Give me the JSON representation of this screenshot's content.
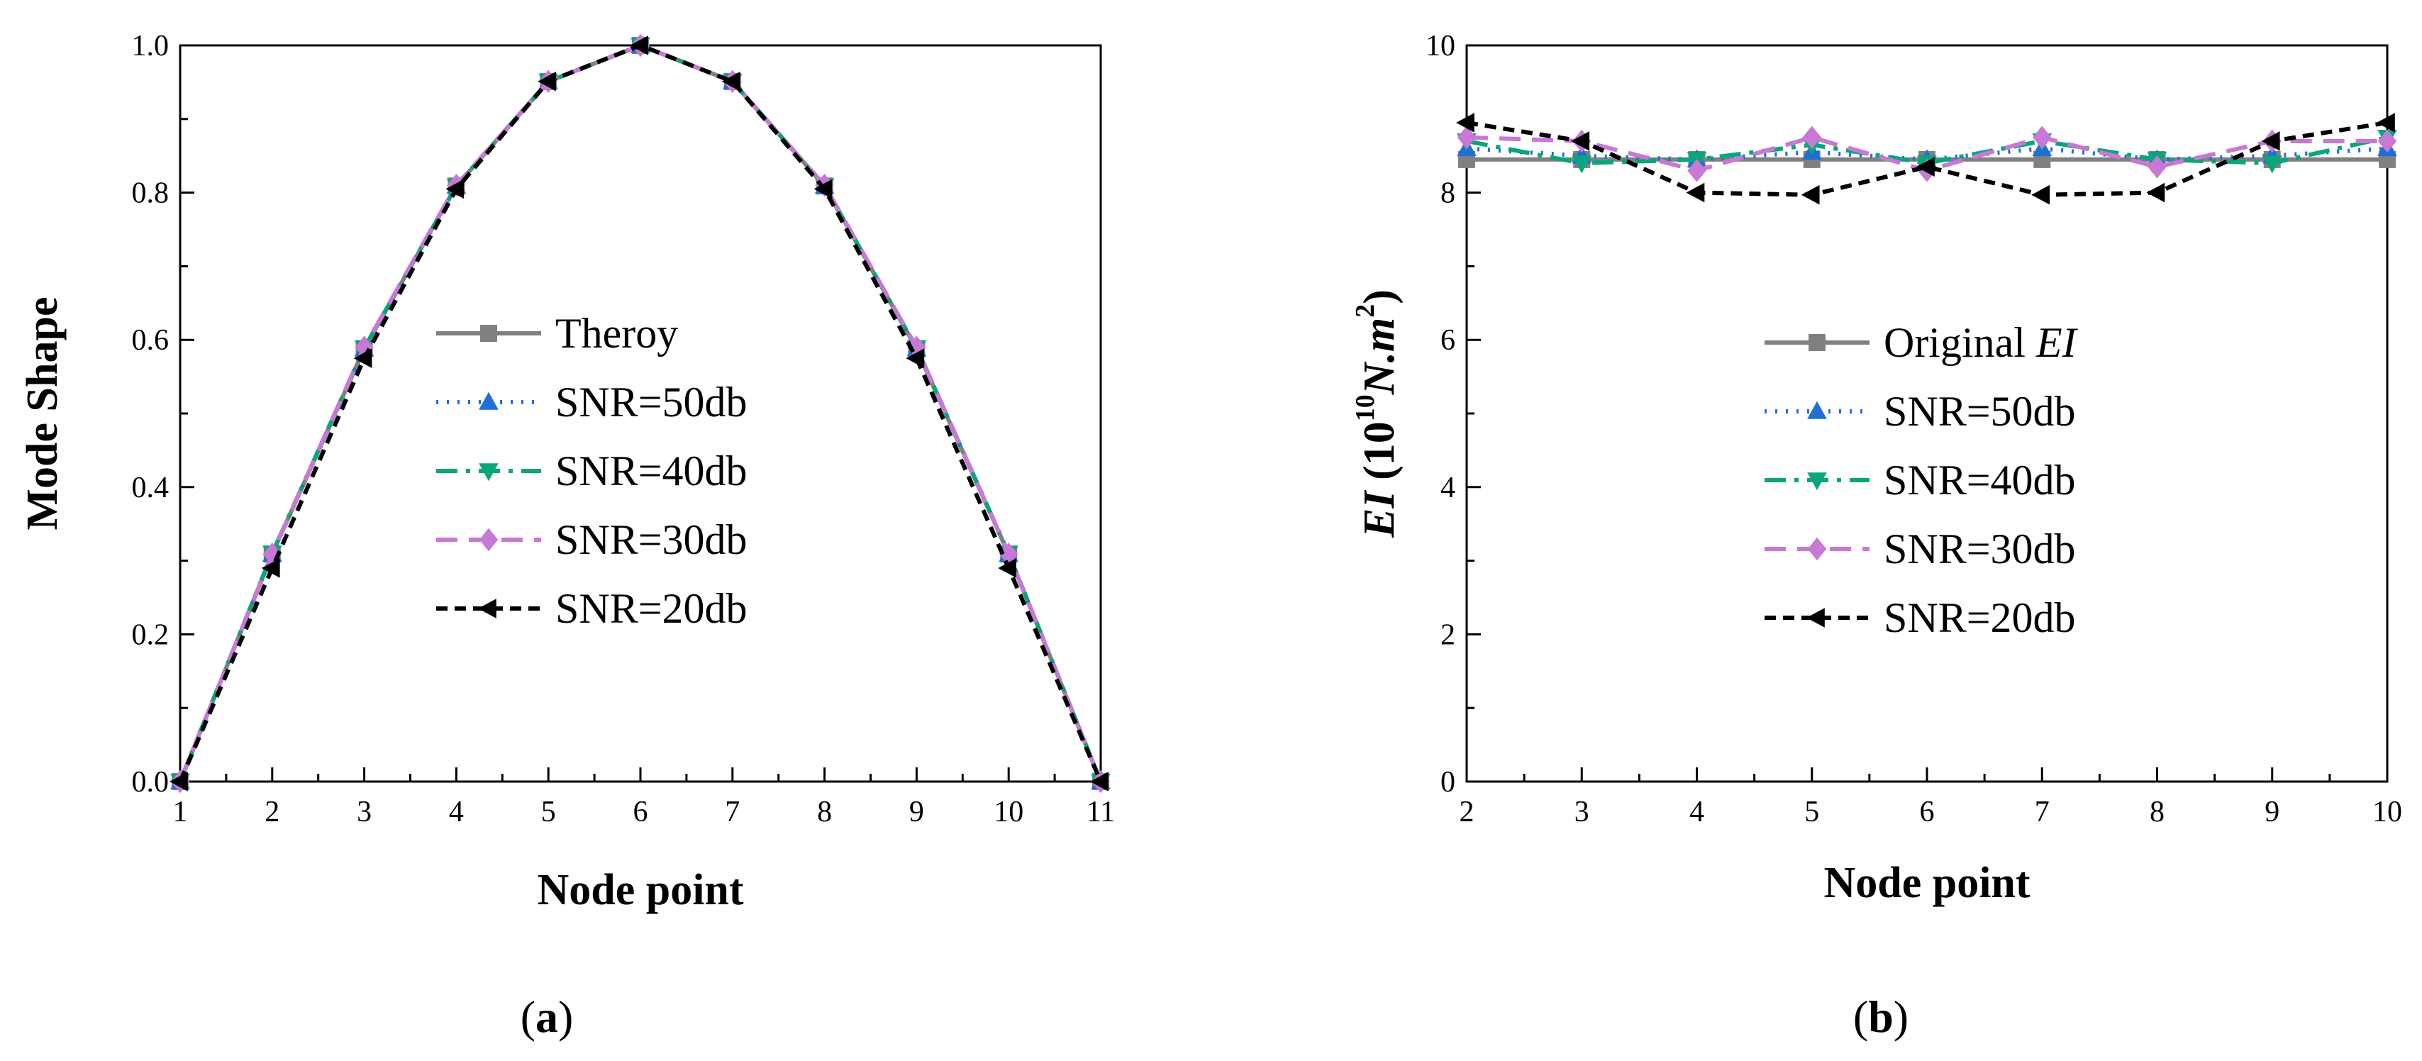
{
  "chart_data": [
    {
      "type": "line",
      "panel_label": "(a)",
      "panel_letter": "a",
      "title": "",
      "xlabel": "Node  point",
      "ylabel": "Mode Shape",
      "xlim": [
        1,
        11
      ],
      "ylim": [
        0,
        1.0
      ],
      "x_ticks": [
        1,
        2,
        3,
        4,
        5,
        6,
        7,
        8,
        9,
        10,
        11
      ],
      "y_ticks": [
        0.0,
        0.2,
        0.4,
        0.6,
        0.8,
        1.0
      ],
      "y_tick_labels": [
        "0.0",
        "0.2",
        "0.4",
        "0.6",
        "0.8",
        "1.0"
      ],
      "legend_position": "center",
      "x": [
        1,
        2,
        3,
        4,
        5,
        6,
        7,
        8,
        9,
        10,
        11
      ],
      "series": [
        {
          "name": "Theroy",
          "name_italic": "",
          "color": "#808080",
          "dash": "solid",
          "marker": "square",
          "values": [
            0,
            0.309,
            0.588,
            0.809,
            0.951,
            1.0,
            0.951,
            0.809,
            0.588,
            0.309,
            0
          ]
        },
        {
          "name": "SNR=50db",
          "name_italic": "",
          "color": "#1f6fd6",
          "dash": "dot",
          "marker": "triangle-up",
          "values": [
            0,
            0.309,
            0.588,
            0.809,
            0.951,
            1.0,
            0.951,
            0.809,
            0.588,
            0.309,
            0
          ]
        },
        {
          "name": "SNR=40db",
          "name_italic": "",
          "color": "#0aa57a",
          "dash": "dashdot",
          "marker": "triangle-down",
          "values": [
            0,
            0.31,
            0.589,
            0.809,
            0.951,
            1.0,
            0.951,
            0.809,
            0.589,
            0.31,
            0
          ]
        },
        {
          "name": "SNR=30db",
          "name_italic": "",
          "color": "#c878d6",
          "dash": "dash",
          "marker": "diamond",
          "values": [
            0,
            0.309,
            0.59,
            0.81,
            0.951,
            1.0,
            0.951,
            0.81,
            0.59,
            0.309,
            0
          ]
        },
        {
          "name": "SNR=20db",
          "name_italic": "",
          "color": "#000000",
          "dash": "shortdash",
          "marker": "triangle-left",
          "values": [
            0,
            0.29,
            0.575,
            0.805,
            0.951,
            1.0,
            0.951,
            0.805,
            0.575,
            0.29,
            0
          ]
        }
      ]
    },
    {
      "type": "line",
      "panel_label": "(b)",
      "panel_letter": "b",
      "title": "",
      "xlabel": "Node point",
      "ylabel": "EI (10¹⁰N.m²)",
      "ylabel_parts": {
        "ei": "EI",
        "base": "(10",
        "exp1": "10",
        "unit": "N.m",
        "exp2": "2",
        "close": ")"
      },
      "xlim": [
        2,
        10
      ],
      "ylim": [
        0,
        10
      ],
      "x_ticks": [
        2,
        3,
        4,
        5,
        6,
        7,
        8,
        9,
        10
      ],
      "y_ticks": [
        0,
        2,
        4,
        6,
        8,
        10
      ],
      "y_tick_labels": [
        "0",
        "2",
        "4",
        "6",
        "8",
        "10"
      ],
      "legend_position": "center",
      "x": [
        2,
        3,
        4,
        5,
        6,
        7,
        8,
        9,
        10
      ],
      "series": [
        {
          "name": "Original ",
          "name_italic": "EI",
          "color": "#808080",
          "dash": "solid",
          "marker": "square",
          "values": [
            8.45,
            8.45,
            8.45,
            8.45,
            8.45,
            8.45,
            8.45,
            8.45,
            8.45
          ]
        },
        {
          "name": "SNR=50db",
          "name_italic": "",
          "color": "#1f6fd6",
          "dash": "dot",
          "marker": "triangle-up",
          "values": [
            8.6,
            8.5,
            8.45,
            8.55,
            8.45,
            8.6,
            8.45,
            8.5,
            8.6
          ]
        },
        {
          "name": "SNR=40db",
          "name_italic": "",
          "color": "#0aa57a",
          "dash": "dashdot",
          "marker": "triangle-down",
          "values": [
            8.7,
            8.4,
            8.45,
            8.65,
            8.4,
            8.7,
            8.45,
            8.4,
            8.75
          ]
        },
        {
          "name": "SNR=30db",
          "name_italic": "",
          "color": "#c878d6",
          "dash": "dash",
          "marker": "diamond",
          "values": [
            8.75,
            8.7,
            8.3,
            8.75,
            8.3,
            8.75,
            8.35,
            8.7,
            8.7
          ]
        },
        {
          "name": "SNR=20db",
          "name_italic": "",
          "color": "#000000",
          "dash": "shortdash",
          "marker": "triangle-left",
          "values": [
            8.95,
            8.7,
            8.0,
            7.97,
            8.35,
            7.97,
            8.0,
            8.7,
            8.95
          ]
        }
      ]
    }
  ]
}
